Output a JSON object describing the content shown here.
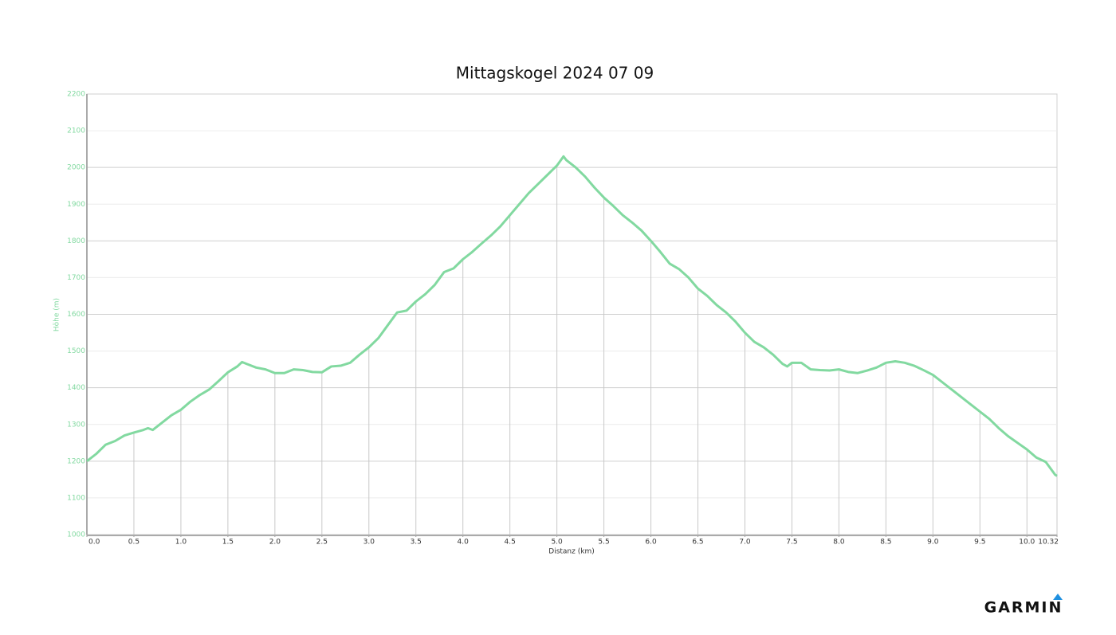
{
  "chart_data": {
    "type": "line",
    "title": "Mittagskogel 2024 07 09",
    "x_label": "Distanz (km)",
    "y_label": "Höhe (m)",
    "xlim": [
      0,
      10.32
    ],
    "ylim": [
      1000,
      2200
    ],
    "xticks": [
      {
        "value": 0,
        "label": "0.0"
      },
      0.5,
      {
        "value": 1,
        "label": "1.0"
      },
      1.5,
      {
        "value": 2,
        "label": "2.0"
      },
      2.5,
      {
        "value": 3,
        "label": "3.0"
      },
      3.5,
      {
        "value": 4,
        "label": "4.0"
      },
      4.5,
      {
        "value": 5,
        "label": "5.0"
      },
      5.5,
      {
        "value": 6,
        "label": "6.0"
      },
      6.5,
      {
        "value": 7,
        "label": "7.0"
      },
      7.5,
      {
        "value": 8,
        "label": "8.0"
      },
      8.5,
      {
        "value": 9,
        "label": "9.0"
      },
      9.5,
      {
        "value": 10,
        "label": "10.0"
      },
      10.32
    ],
    "yticks": [
      1000,
      1100,
      1200,
      1300,
      1400,
      1500,
      1600,
      1700,
      1800,
      1900,
      2000,
      2100,
      2200
    ],
    "grid": true,
    "x": [
      0,
      0.1,
      0.2,
      0.3,
      0.4,
      0.5,
      0.6,
      0.65,
      0.7,
      0.8,
      0.9,
      1.0,
      1.1,
      1.2,
      1.3,
      1.4,
      1.5,
      1.6,
      1.65,
      1.7,
      1.8,
      1.9,
      2.0,
      2.1,
      2.2,
      2.3,
      2.4,
      2.5,
      2.6,
      2.7,
      2.8,
      2.9,
      3.0,
      3.1,
      3.2,
      3.3,
      3.4,
      3.5,
      3.6,
      3.7,
      3.8,
      3.9,
      4.0,
      4.1,
      4.2,
      4.3,
      4.4,
      4.5,
      4.6,
      4.7,
      4.8,
      4.9,
      5.0,
      5.07,
      5.1,
      5.2,
      5.3,
      5.4,
      5.5,
      5.6,
      5.7,
      5.8,
      5.9,
      6.0,
      6.1,
      6.2,
      6.3,
      6.4,
      6.5,
      6.6,
      6.7,
      6.8,
      6.9,
      7.0,
      7.1,
      7.2,
      7.3,
      7.4,
      7.45,
      7.5,
      7.6,
      7.7,
      7.8,
      7.9,
      8.0,
      8.1,
      8.2,
      8.3,
      8.4,
      8.5,
      8.6,
      8.7,
      8.8,
      8.9,
      9.0,
      9.1,
      9.2,
      9.3,
      9.4,
      9.5,
      9.6,
      9.7,
      9.8,
      9.9,
      10.0,
      10.1,
      10.2,
      10.3,
      10.32
    ],
    "series": [
      {
        "color": "#82d9a0",
        "values": [
          1200,
          1220,
          1245,
          1255,
          1270,
          1278,
          1285,
          1290,
          1285,
          1305,
          1325,
          1340,
          1362,
          1380,
          1395,
          1418,
          1442,
          1458,
          1470,
          1465,
          1455,
          1450,
          1440,
          1440,
          1450,
          1448,
          1443,
          1442,
          1458,
          1460,
          1468,
          1490,
          1510,
          1535,
          1570,
          1605,
          1610,
          1635,
          1655,
          1680,
          1715,
          1725,
          1750,
          1770,
          1793,
          1815,
          1840,
          1870,
          1900,
          1930,
          1955,
          1980,
          2005,
          2030,
          2020,
          2000,
          1975,
          1945,
          1918,
          1895,
          1870,
          1850,
          1828,
          1800,
          1770,
          1738,
          1723,
          1700,
          1670,
          1650,
          1625,
          1605,
          1580,
          1550,
          1525,
          1510,
          1490,
          1465,
          1458,
          1468,
          1468,
          1450,
          1448,
          1447,
          1450,
          1443,
          1440,
          1447,
          1455,
          1468,
          1472,
          1468,
          1460,
          1448,
          1435,
          1415,
          1395,
          1375,
          1355,
          1335,
          1315,
          1290,
          1268,
          1250,
          1232,
          1210,
          1198,
          1163,
          1160
        ]
      }
    ]
  },
  "logo": "GARMIN"
}
